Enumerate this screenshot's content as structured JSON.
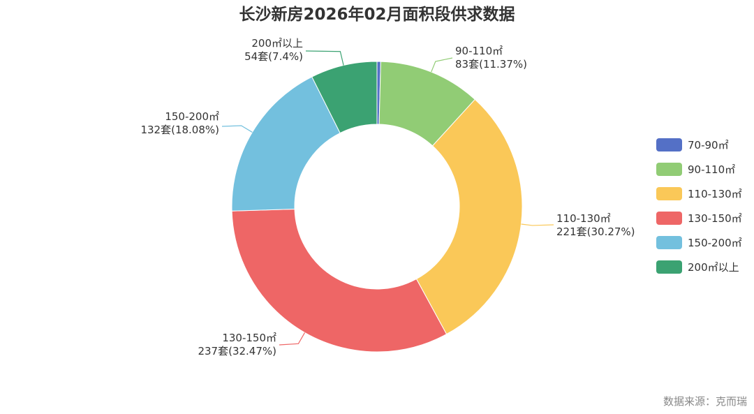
{
  "chart_data": {
    "type": "pie",
    "variant": "donut",
    "title": "长沙新房2026年02月面积段供求数据",
    "source": "数据来源：克而瑞",
    "legend_position": "right",
    "unit": "套",
    "slices": [
      {
        "name": "70-90㎡",
        "value": 3,
        "percent_label": "",
        "color": "#5470c6",
        "label_line1": "",
        "label_line2": ""
      },
      {
        "name": "90-110㎡",
        "value": 83,
        "percent_label": "11.37%",
        "color": "#91cc75",
        "label_line1": "90-110㎡",
        "label_line2": "83套(11.37%)"
      },
      {
        "name": "110-130㎡",
        "value": 221,
        "percent_label": "30.27%",
        "color": "#fac858",
        "label_line1": "110-130㎡",
        "label_line2": "221套(30.27%)"
      },
      {
        "name": "130-150㎡",
        "value": 237,
        "percent_label": "32.47%",
        "color": "#ee6666",
        "label_line1": "130-150㎡",
        "label_line2": "237套(32.47%)"
      },
      {
        "name": "150-200㎡",
        "value": 132,
        "percent_label": "18.08%",
        "color": "#73c0de",
        "label_line1": "150-200㎡",
        "label_line2": "132套(18.08%)"
      },
      {
        "name": "200㎡以上",
        "value": 54,
        "percent_label": "7.4%",
        "color": "#3ba272",
        "label_line1": "200㎡以上",
        "label_line2": "54套(7.4%)"
      }
    ]
  }
}
